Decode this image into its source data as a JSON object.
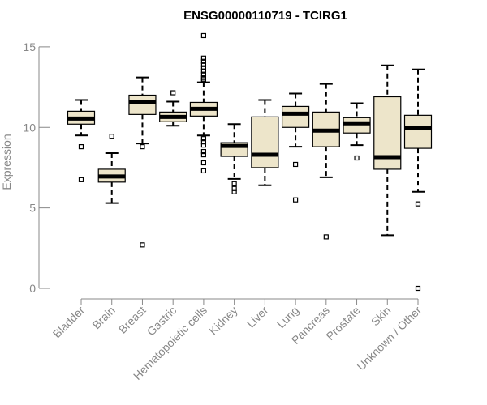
{
  "chart_data": {
    "type": "boxplot",
    "title": "ENSG00000110719 - TCIRG1",
    "xlabel": "",
    "ylabel": "Expression",
    "ylim": [
      0,
      15.9
    ],
    "yticks": [
      0,
      5,
      10,
      15
    ],
    "box_color": "#ede5ca",
    "categories": [
      "Bladder",
      "Brain",
      "Breast",
      "Gastric",
      "Hematopoietic cells",
      "Kidney",
      "Liver",
      "Lung",
      "Pancreas",
      "Prostate",
      "Skin",
      "Unknown / Other"
    ],
    "boxes": [
      {
        "name": "Bladder",
        "whisker_low": 9.5,
        "q1": 10.2,
        "median": 10.55,
        "q3": 11.0,
        "whisker_high": 11.7,
        "outliers": [
          8.8,
          6.75
        ]
      },
      {
        "name": "Brain",
        "whisker_low": 5.3,
        "q1": 6.6,
        "median": 6.95,
        "q3": 7.4,
        "whisker_high": 8.4,
        "outliers": [
          9.45
        ]
      },
      {
        "name": "Breast",
        "whisker_low": 9.0,
        "q1": 10.8,
        "median": 11.6,
        "q3": 12.0,
        "whisker_high": 13.1,
        "outliers": [
          8.8,
          2.7
        ]
      },
      {
        "name": "Gastric",
        "whisker_low": 10.1,
        "q1": 10.35,
        "median": 10.65,
        "q3": 10.95,
        "whisker_high": 11.6,
        "outliers": [
          12.15
        ]
      },
      {
        "name": "Hematopoietic cells",
        "whisker_low": 9.5,
        "q1": 10.7,
        "median": 11.15,
        "q3": 11.55,
        "whisker_high": 12.8,
        "outliers": [
          15.7,
          14.3,
          14.1,
          13.9,
          13.7,
          13.5,
          13.3,
          13.1,
          13.0,
          12.9,
          9.3,
          9.1,
          8.9,
          8.5,
          8.3,
          7.8,
          7.3
        ]
      },
      {
        "name": "Kidney",
        "whisker_low": 6.8,
        "q1": 8.2,
        "median": 8.85,
        "q3": 9.05,
        "whisker_high": 10.2,
        "outliers": [
          6.5,
          6.2,
          6.0
        ]
      },
      {
        "name": "Liver",
        "whisker_low": 6.4,
        "q1": 7.5,
        "median": 8.3,
        "q3": 10.65,
        "whisker_high": 11.7,
        "outliers": []
      },
      {
        "name": "Lung",
        "whisker_low": 8.8,
        "q1": 10.0,
        "median": 10.85,
        "q3": 11.3,
        "whisker_high": 12.1,
        "outliers": [
          7.7,
          5.5
        ]
      },
      {
        "name": "Pancreas",
        "whisker_low": 6.9,
        "q1": 8.8,
        "median": 9.8,
        "q3": 10.95,
        "whisker_high": 12.7,
        "outliers": [
          3.2
        ]
      },
      {
        "name": "Prostate",
        "whisker_low": 8.9,
        "q1": 9.65,
        "median": 10.25,
        "q3": 10.6,
        "whisker_high": 11.5,
        "outliers": [
          8.1
        ]
      },
      {
        "name": "Skin",
        "whisker_low": 3.3,
        "q1": 7.4,
        "median": 8.15,
        "q3": 11.9,
        "whisker_high": 13.85,
        "outliers": []
      },
      {
        "name": "Unknown / Other",
        "whisker_low": 6.0,
        "q1": 8.7,
        "median": 9.95,
        "q3": 10.75,
        "whisker_high": 13.6,
        "outliers": [
          5.25,
          0.0
        ]
      }
    ]
  }
}
